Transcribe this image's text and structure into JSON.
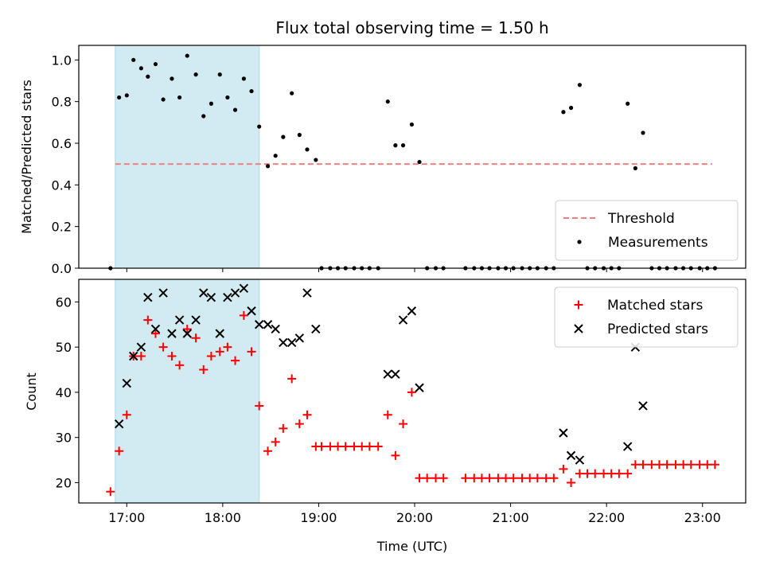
{
  "chart_data": [
    {
      "type": "scatter",
      "title": "Flux total observing time = 1.50 h",
      "ylabel": "Matched/Predicted stars",
      "xlabel": "",
      "x_unit": "hours UTC",
      "xlim": [
        16.5,
        23.45
      ],
      "ylim": [
        0,
        1.07
      ],
      "yticks": [
        0.0,
        0.2,
        0.4,
        0.6,
        0.8,
        1.0
      ],
      "ytick_labels": [
        "0.0",
        "0.2",
        "0.4",
        "0.6",
        "0.8",
        "1.0"
      ],
      "shaded_region": {
        "x_start": 16.88,
        "x_end": 18.38,
        "color": "#add8e6"
      },
      "threshold": {
        "name": "Threshold",
        "value": 0.5,
        "x_start": 16.88,
        "x_end": 23.1,
        "color": "#f08080"
      },
      "legend": {
        "position": "lower-right",
        "entries": [
          "Threshold",
          "Measurements"
        ]
      },
      "series": [
        {
          "name": "Measurements",
          "color": "#000000",
          "marker": "dot",
          "points": [
            [
              16.83,
              0.0
            ],
            [
              16.92,
              0.82
            ],
            [
              17.0,
              0.83
            ],
            [
              17.07,
              1.0
            ],
            [
              17.15,
              0.96
            ],
            [
              17.22,
              0.92
            ],
            [
              17.3,
              0.98
            ],
            [
              17.38,
              0.81
            ],
            [
              17.47,
              0.91
            ],
            [
              17.55,
              0.82
            ],
            [
              17.63,
              1.02
            ],
            [
              17.72,
              0.93
            ],
            [
              17.8,
              0.73
            ],
            [
              17.88,
              0.79
            ],
            [
              17.97,
              0.93
            ],
            [
              18.05,
              0.82
            ],
            [
              18.13,
              0.76
            ],
            [
              18.22,
              0.91
            ],
            [
              18.3,
              0.85
            ],
            [
              18.38,
              0.68
            ],
            [
              18.47,
              0.49
            ],
            [
              18.55,
              0.54
            ],
            [
              18.63,
              0.63
            ],
            [
              18.72,
              0.84
            ],
            [
              18.8,
              0.64
            ],
            [
              18.88,
              0.57
            ],
            [
              18.97,
              0.52
            ],
            [
              19.03,
              0.0
            ],
            [
              19.12,
              0.0
            ],
            [
              19.2,
              0.0
            ],
            [
              19.28,
              0.0
            ],
            [
              19.37,
              0.0
            ],
            [
              19.45,
              0.0
            ],
            [
              19.53,
              0.0
            ],
            [
              19.62,
              0.0
            ],
            [
              19.72,
              0.8
            ],
            [
              19.8,
              0.59
            ],
            [
              19.88,
              0.59
            ],
            [
              19.97,
              0.69
            ],
            [
              20.05,
              0.51
            ],
            [
              20.13,
              0.0
            ],
            [
              20.22,
              0.0
            ],
            [
              20.3,
              0.0
            ],
            [
              20.53,
              0.0
            ],
            [
              20.62,
              0.0
            ],
            [
              20.7,
              0.0
            ],
            [
              20.78,
              0.0
            ],
            [
              20.87,
              0.0
            ],
            [
              20.95,
              0.0
            ],
            [
              21.03,
              0.0
            ],
            [
              21.12,
              0.0
            ],
            [
              21.2,
              0.0
            ],
            [
              21.28,
              0.0
            ],
            [
              21.37,
              0.0
            ],
            [
              21.45,
              0.0
            ],
            [
              21.55,
              0.75
            ],
            [
              21.63,
              0.77
            ],
            [
              21.72,
              0.88
            ],
            [
              21.8,
              0.0
            ],
            [
              21.88,
              0.0
            ],
            [
              21.97,
              0.0
            ],
            [
              22.05,
              0.0
            ],
            [
              22.13,
              0.0
            ],
            [
              22.22,
              0.79
            ],
            [
              22.3,
              0.48
            ],
            [
              22.38,
              0.65
            ],
            [
              22.47,
              0.0
            ],
            [
              22.55,
              0.0
            ],
            [
              22.63,
              0.0
            ],
            [
              22.72,
              0.0
            ],
            [
              22.8,
              0.0
            ],
            [
              22.88,
              0.0
            ],
            [
              22.97,
              0.0
            ],
            [
              23.05,
              0.0
            ],
            [
              23.13,
              0.0
            ]
          ]
        }
      ]
    },
    {
      "type": "scatter",
      "title": "",
      "ylabel": "Count",
      "xlabel": "Time (UTC)",
      "x_unit": "hours UTC",
      "xlim": [
        16.5,
        23.45
      ],
      "ylim": [
        15.5,
        65
      ],
      "xticks": [
        17,
        18,
        19,
        20,
        21,
        22,
        23
      ],
      "xtick_labels": [
        "17:00",
        "18:00",
        "19:00",
        "20:00",
        "21:00",
        "22:00",
        "23:00"
      ],
      "yticks": [
        20,
        30,
        40,
        50,
        60
      ],
      "ytick_labels": [
        "20",
        "30",
        "40",
        "50",
        "60"
      ],
      "shaded_region": {
        "x_start": 16.88,
        "x_end": 18.38,
        "color": "#add8e6"
      },
      "legend": {
        "position": "upper-right",
        "entries": [
          "Matched stars",
          "Predicted stars"
        ]
      },
      "series": [
        {
          "name": "Matched stars",
          "color": "#ff0000",
          "marker": "plus",
          "points": [
            [
              16.83,
              18
            ],
            [
              16.92,
              27
            ],
            [
              17.0,
              35
            ],
            [
              17.07,
              48
            ],
            [
              17.15,
              48
            ],
            [
              17.22,
              56
            ],
            [
              17.3,
              53
            ],
            [
              17.38,
              50
            ],
            [
              17.47,
              48
            ],
            [
              17.55,
              46
            ],
            [
              17.63,
              54
            ],
            [
              17.72,
              52
            ],
            [
              17.8,
              45
            ],
            [
              17.88,
              48
            ],
            [
              17.97,
              49
            ],
            [
              18.05,
              50
            ],
            [
              18.13,
              47
            ],
            [
              18.22,
              57
            ],
            [
              18.3,
              49
            ],
            [
              18.38,
              37
            ],
            [
              18.47,
              27
            ],
            [
              18.55,
              29
            ],
            [
              18.63,
              32
            ],
            [
              18.72,
              43
            ],
            [
              18.8,
              33
            ],
            [
              18.88,
              35
            ],
            [
              18.97,
              28
            ],
            [
              19.03,
              28
            ],
            [
              19.12,
              28
            ],
            [
              19.2,
              28
            ],
            [
              19.28,
              28
            ],
            [
              19.37,
              28
            ],
            [
              19.45,
              28
            ],
            [
              19.53,
              28
            ],
            [
              19.62,
              28
            ],
            [
              19.72,
              35
            ],
            [
              19.8,
              26
            ],
            [
              19.88,
              33
            ],
            [
              19.97,
              40
            ],
            [
              20.05,
              21
            ],
            [
              20.13,
              21
            ],
            [
              20.22,
              21
            ],
            [
              20.3,
              21
            ],
            [
              20.53,
              21
            ],
            [
              20.62,
              21
            ],
            [
              20.7,
              21
            ],
            [
              20.78,
              21
            ],
            [
              20.87,
              21
            ],
            [
              20.95,
              21
            ],
            [
              21.03,
              21
            ],
            [
              21.12,
              21
            ],
            [
              21.2,
              21
            ],
            [
              21.28,
              21
            ],
            [
              21.37,
              21
            ],
            [
              21.45,
              21
            ],
            [
              21.55,
              23
            ],
            [
              21.63,
              20
            ],
            [
              21.72,
              22
            ],
            [
              21.8,
              22
            ],
            [
              21.88,
              22
            ],
            [
              21.97,
              22
            ],
            [
              22.05,
              22
            ],
            [
              22.13,
              22
            ],
            [
              22.22,
              22
            ],
            [
              22.3,
              24
            ],
            [
              22.38,
              24
            ],
            [
              22.47,
              24
            ],
            [
              22.55,
              24
            ],
            [
              22.63,
              24
            ],
            [
              22.72,
              24
            ],
            [
              22.8,
              24
            ],
            [
              22.88,
              24
            ],
            [
              22.97,
              24
            ],
            [
              23.05,
              24
            ],
            [
              23.13,
              24
            ]
          ]
        },
        {
          "name": "Predicted stars",
          "color": "#000000",
          "marker": "x",
          "points": [
            [
              16.92,
              33
            ],
            [
              17.0,
              42
            ],
            [
              17.07,
              48
            ],
            [
              17.15,
              50
            ],
            [
              17.22,
              61
            ],
            [
              17.3,
              54
            ],
            [
              17.38,
              62
            ],
            [
              17.47,
              53
            ],
            [
              17.55,
              56
            ],
            [
              17.63,
              53
            ],
            [
              17.72,
              56
            ],
            [
              17.8,
              62
            ],
            [
              17.88,
              61
            ],
            [
              17.97,
              53
            ],
            [
              18.05,
              61
            ],
            [
              18.13,
              62
            ],
            [
              18.22,
              63
            ],
            [
              18.3,
              58
            ],
            [
              18.38,
              55
            ],
            [
              18.47,
              55
            ],
            [
              18.55,
              54
            ],
            [
              18.63,
              51
            ],
            [
              18.72,
              51
            ],
            [
              18.8,
              52
            ],
            [
              18.88,
              62
            ],
            [
              18.97,
              54
            ],
            [
              19.72,
              44
            ],
            [
              19.8,
              44
            ],
            [
              19.88,
              56
            ],
            [
              19.97,
              58
            ],
            [
              20.05,
              41
            ],
            [
              21.55,
              31
            ],
            [
              21.63,
              26
            ],
            [
              21.72,
              25
            ],
            [
              22.22,
              28
            ],
            [
              22.3,
              50
            ],
            [
              22.38,
              37
            ]
          ]
        }
      ]
    }
  ]
}
